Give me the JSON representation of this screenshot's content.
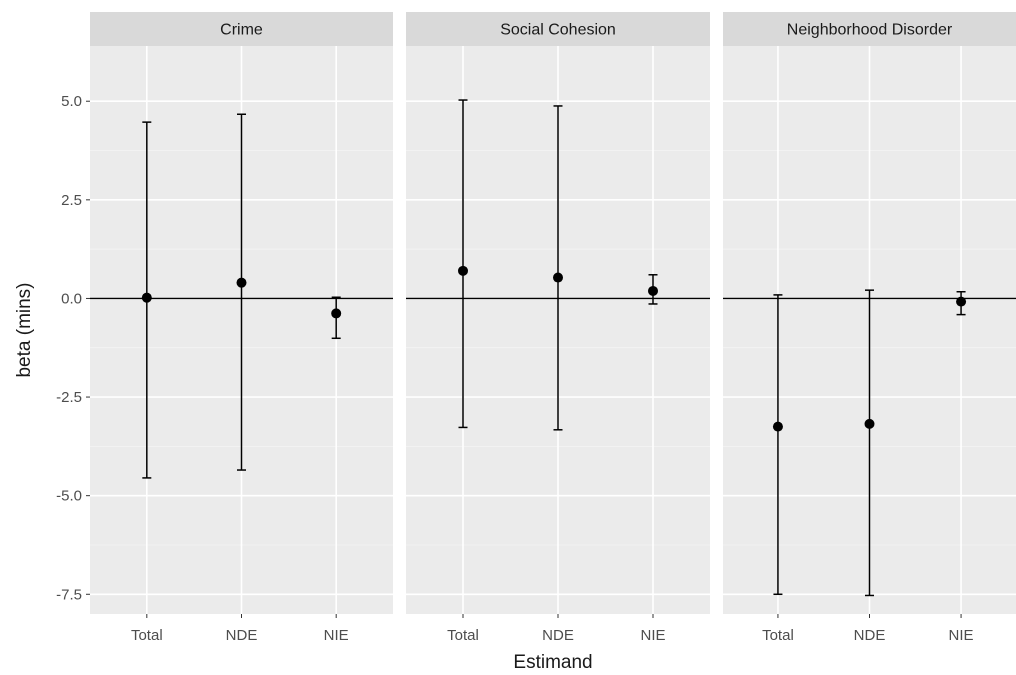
{
  "chart_data": {
    "type": "errorbar",
    "facets": [
      "Crime",
      "Social Cohesion",
      "Neighborhood Disorder"
    ],
    "categories": [
      "Total",
      "NDE",
      "NIE"
    ],
    "xlabel": "Estimand",
    "ylabel": "beta (mins)",
    "ylim": [
      -8.0,
      6.4
    ],
    "yticks": [
      -7.5,
      -5.0,
      -2.5,
      0.0,
      2.5,
      5.0
    ],
    "ytick_labels": [
      "-7.5",
      "-5.0",
      "-2.5",
      "0.0",
      "2.5",
      "5.0"
    ],
    "reference_line": 0,
    "grid": true,
    "panels": [
      {
        "facet": "Crime",
        "points": [
          {
            "x": "Total",
            "estimate": 0.02,
            "lower": -4.55,
            "upper": 4.47
          },
          {
            "x": "NDE",
            "estimate": 0.4,
            "lower": -4.35,
            "upper": 4.67
          },
          {
            "x": "NIE",
            "estimate": -0.38,
            "lower": -1.01,
            "upper": 0.03
          }
        ]
      },
      {
        "facet": "Social Cohesion",
        "points": [
          {
            "x": "Total",
            "estimate": 0.7,
            "lower": -3.27,
            "upper": 5.03
          },
          {
            "x": "NDE",
            "estimate": 0.53,
            "lower": -3.33,
            "upper": 4.88
          },
          {
            "x": "NIE",
            "estimate": 0.19,
            "lower": -0.14,
            "upper": 0.6
          }
        ]
      },
      {
        "facet": "Neighborhood Disorder",
        "points": [
          {
            "x": "Total",
            "estimate": -3.25,
            "lower": -7.5,
            "upper": 0.09
          },
          {
            "x": "NDE",
            "estimate": -3.18,
            "lower": -7.53,
            "upper": 0.21
          },
          {
            "x": "NIE",
            "estimate": -0.08,
            "lower": -0.41,
            "upper": 0.17
          }
        ]
      }
    ]
  }
}
